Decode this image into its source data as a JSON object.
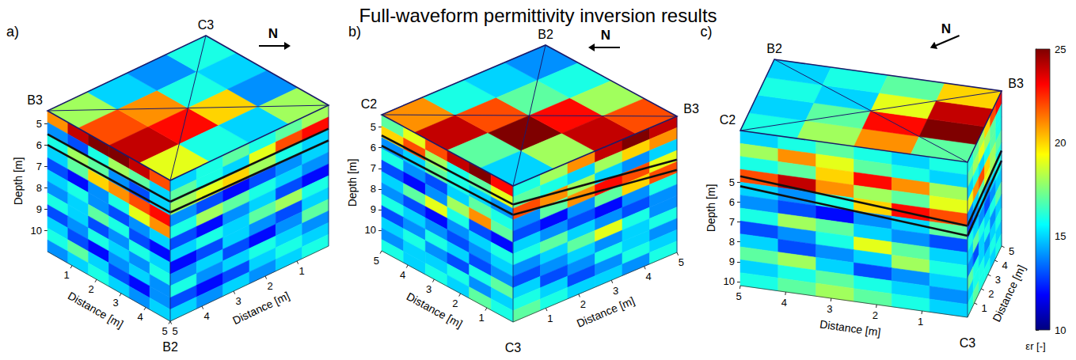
{
  "title": "Full-waveform permittivity inversion results",
  "colorbar": {
    "label": "εr [-]",
    "range": [
      10,
      25
    ],
    "ticks": [
      10,
      15,
      20,
      25
    ]
  },
  "chart_data": [
    {
      "type": "heatmap",
      "letter": "a)",
      "north": {
        "label": "N",
        "direction": "right"
      },
      "corners": {
        "left": "B3",
        "back": "C3",
        "front": "B2"
      },
      "depth_label": "Depth [m]",
      "ylim": [
        4.4,
        11
      ],
      "yticks": [
        5,
        6,
        7,
        8,
        9,
        10
      ],
      "faces": {
        "left": {
          "xlabel": "Distance [m]",
          "xlim": [
            0,
            5
          ],
          "xticks": [
            1,
            2,
            3,
            4,
            5
          ],
          "layer_lines": [
            [
              5.5,
              5.4
            ],
            [
              6.0,
              5.9
            ]
          ],
          "cells": [
            [
              21,
              24,
              25,
              25,
              24,
              22
            ],
            [
              14,
              13,
              16,
              18,
              17,
              15
            ],
            [
              16,
              18,
              17,
              14,
              13,
              15
            ],
            [
              15,
              17,
              20,
              21,
              22,
              23
            ],
            [
              13,
              12,
              14,
              16,
              19,
              21
            ],
            [
              15,
              16,
              14,
              13,
              14,
              15
            ],
            [
              14,
              15,
              17,
              16,
              13,
              12
            ],
            [
              16,
              15,
              13,
              14,
              16,
              15
            ],
            [
              13,
              14,
              16,
              15,
              14,
              16
            ],
            [
              15,
              13,
              12,
              14,
              15,
              14
            ],
            [
              16,
              17,
              15,
              13,
              12,
              14
            ],
            [
              14,
              15,
              16,
              15,
              14,
              15
            ]
          ]
        },
        "right": {
          "xlabel": "Distance [m]",
          "xlim": [
            5,
            0
          ],
          "xticks": [
            5,
            4,
            3,
            2,
            1
          ],
          "layer_lines": [
            [
              5.4,
              5.5
            ],
            [
              5.9,
              6.05
            ]
          ],
          "cells": [
            [
              15,
              16,
              17,
              16,
              17,
              18
            ],
            [
              17,
              16,
              15,
              19,
              22,
              23
            ],
            [
              18,
              19,
              20,
              18,
              16,
              15
            ],
            [
              14,
              13,
              12,
              13,
              14,
              15
            ],
            [
              16,
              18,
              17,
              16,
              15,
              14
            ],
            [
              13,
              12,
              14,
              15,
              13,
              12
            ],
            [
              15,
              16,
              15,
              17,
              18,
              16
            ],
            [
              12,
              13,
              15,
              14,
              13,
              15
            ],
            [
              14,
              15,
              13,
              12,
              14,
              17
            ],
            [
              16,
              14,
              15,
              16,
              15,
              14
            ],
            [
              13,
              12,
              13,
              15,
              16,
              15
            ],
            [
              15,
              14,
              15,
              14,
              15,
              16
            ]
          ]
        },
        "top": {
          "cells": [
            [
              18,
              22,
              24,
              19
            ],
            [
              15,
              21,
              23,
              16
            ],
            [
              14,
              16,
              20,
              15
            ],
            [
              16,
              15,
              14,
              18
            ]
          ]
        }
      }
    },
    {
      "type": "heatmap",
      "letter": "b)",
      "north": {
        "label": "N",
        "direction": "left"
      },
      "corners": {
        "left": "C2",
        "back": "B2",
        "right": "B3",
        "front": "C3"
      },
      "depth_label": "Depth [m]",
      "ylim": [
        4.4,
        11
      ],
      "yticks": [
        5,
        6,
        7,
        8,
        9,
        10
      ],
      "faces": {
        "left": {
          "xlabel": "Distance [m]",
          "xlim": [
            5,
            0
          ],
          "xticks": [
            5,
            4,
            3,
            2,
            1
          ],
          "layer_lines": [
            [
              5.4,
              5.3
            ],
            [
              5.9,
              5.8
            ]
          ],
          "cells": [
            [
              17,
              19,
              22,
              24,
              25,
              23
            ],
            [
              20,
              22,
              18,
              16,
              17,
              19
            ],
            [
              14,
              15,
              17,
              16,
              15,
              14
            ],
            [
              16,
              14,
              13,
              15,
              17,
              16
            ],
            [
              13,
              12,
              14,
              18,
              21,
              17
            ],
            [
              15,
              17,
              19,
              16,
              13,
              12
            ],
            [
              14,
              13,
              12,
              14,
              15,
              16
            ],
            [
              16,
              15,
              14,
              13,
              14,
              15
            ],
            [
              13,
              14,
              16,
              15,
              13,
              14
            ],
            [
              15,
              16,
              14,
              13,
              16,
              17
            ],
            [
              14,
              15,
              15,
              16,
              14,
              15
            ],
            [
              16,
              15,
              16,
              15,
              17,
              16
            ]
          ]
        },
        "right": {
          "xlabel": "Distance [m]",
          "xlim": [
            0,
            5
          ],
          "xticks": [
            1,
            2,
            3,
            4,
            5
          ],
          "layer_lines": [
            [
              5.3,
              6.5
            ],
            [
              5.8,
              7.0
            ]
          ],
          "cells": [
            [
              16,
              18,
              21,
              24,
              25,
              24
            ],
            [
              17,
              16,
              15,
              18,
              20,
              21
            ],
            [
              22,
              21,
              18,
              15,
              14,
              15
            ],
            [
              14,
              17,
              21,
              23,
              22,
              19
            ],
            [
              13,
              12,
              14,
              17,
              20,
              22
            ],
            [
              15,
              14,
              13,
              12,
              14,
              16
            ],
            [
              16,
              17,
              15,
              14,
              13,
              14
            ],
            [
              14,
              15,
              17,
              19,
              16,
              14
            ],
            [
              13,
              14,
              15,
              14,
              15,
              16
            ],
            [
              15,
              13,
              14,
              16,
              15,
              14
            ],
            [
              16,
              15,
              13,
              14,
              16,
              15
            ],
            [
              17,
              16,
              15,
              15,
              14,
              16
            ]
          ]
        },
        "top": {
          "cells": [
            [
              21,
              24,
              17,
              15
            ],
            [
              16,
              22,
              25,
              18
            ],
            [
              15,
              17,
              23,
              24
            ],
            [
              14,
              16,
              18,
              22
            ]
          ]
        }
      }
    },
    {
      "type": "heatmap",
      "letter": "c)",
      "north": {
        "label": "N",
        "direction": "down-left"
      },
      "corners": {
        "left": "C2",
        "back": "B2",
        "right": "B3",
        "front": "C3"
      },
      "depth_label": "Depth [m]",
      "ylim": [
        2.4,
        10.2
      ],
      "yticks": [
        5,
        6,
        7,
        8,
        9,
        10
      ],
      "faces": {
        "left": {
          "xlabel": "Distance [m]",
          "xlim": [
            5,
            0
          ],
          "xticks": [
            5,
            4,
            3,
            2,
            1
          ],
          "layer_lines": [
            [
              4.7,
              5.6
            ],
            [
              5.2,
              6.1
            ]
          ],
          "cells": [
            [
              15,
              16,
              17,
              16,
              15,
              16
            ],
            [
              18,
              21,
              19,
              17,
              16,
              15
            ],
            [
              16,
              17,
              20,
              23,
              21,
              18
            ],
            [
              22,
              24,
              21,
              18,
              17,
              19
            ],
            [
              15,
              14,
              16,
              20,
              23,
              22
            ],
            [
              14,
              13,
              12,
              14,
              15,
              17
            ],
            [
              16,
              18,
              17,
              15,
              14,
              13
            ],
            [
              13,
              14,
              16,
              19,
              17,
              15
            ],
            [
              15,
              13,
              14,
              15,
              18,
              16
            ],
            [
              17,
              18,
              15,
              13,
              14,
              15
            ],
            [
              15,
              16,
              17,
              16,
              15,
              14
            ],
            [
              16,
              17,
              18,
              17,
              16,
              15
            ]
          ]
        },
        "right": {
          "xlabel": "Distance [m]",
          "xlim": [
            0,
            5
          ],
          "xticks": [
            1,
            2,
            3,
            4,
            5
          ],
          "layer_lines": [
            [
              5.6,
              5.4
            ],
            [
              6.1,
              5.9
            ]
          ],
          "cells": [
            [
              16,
              17,
              18,
              20,
              22,
              23
            ],
            [
              17,
              18,
              19,
              18,
              17,
              16
            ],
            [
              15,
              16,
              15,
              16,
              17,
              16
            ],
            [
              19,
              21,
              22,
              20,
              18,
              17
            ],
            [
              14,
              15,
              17,
              19,
              18,
              16
            ],
            [
              13,
              14,
              15,
              14,
              15,
              16
            ],
            [
              16,
              15,
              14,
              13,
              14,
              15
            ],
            [
              15,
              17,
              16,
              15,
              16,
              17
            ],
            [
              14,
              13,
              15,
              16,
              14,
              15
            ],
            [
              17,
              16,
              15,
              14,
              15,
              16
            ],
            [
              15,
              16,
              16,
              15,
              16,
              15
            ],
            [
              16,
              17,
              16,
              16,
              15,
              16
            ]
          ]
        },
        "top": {
          "cells": [
            [
              16,
              18,
              21,
              17
            ],
            [
              15,
              17,
              23,
              25
            ],
            [
              16,
              15,
              19,
              24
            ],
            [
              15,
              16,
              17,
              20
            ]
          ]
        }
      }
    }
  ]
}
